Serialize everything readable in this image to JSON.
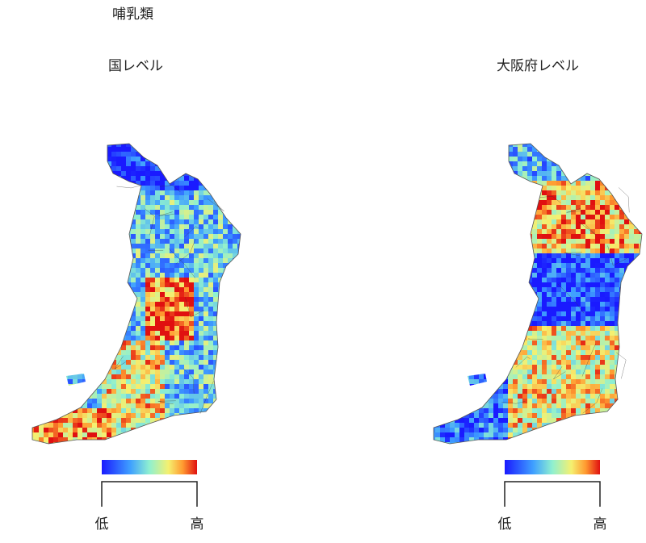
{
  "header": {
    "title": "哺乳類"
  },
  "panels": [
    {
      "title": "国レベル",
      "legend": {
        "low": "低",
        "high": "高"
      }
    },
    {
      "title": "大阪府レベル",
      "legend": {
        "low": "低",
        "high": "高"
      }
    }
  ]
}
